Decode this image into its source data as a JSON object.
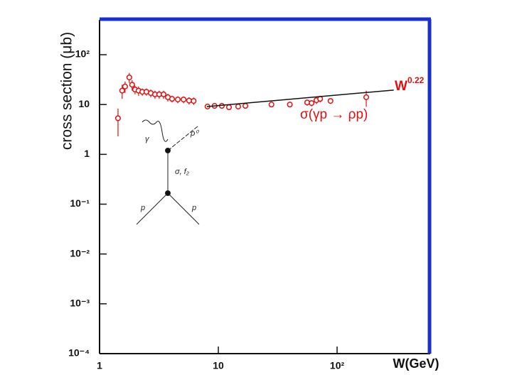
{
  "chart_data": {
    "type": "scatter",
    "xlabel": "W(GeV)",
    "ylabel": "cross section (μb)",
    "xscale": "log",
    "yscale": "log",
    "xlim": [
      1,
      600
    ],
    "ylim": [
      0.0001,
      500
    ],
    "xticks": [
      1,
      10,
      {
        "value": 100,
        "label": "10²"
      }
    ],
    "yticks": [
      {
        "value": 0.0001,
        "label": "10⁻⁴"
      },
      {
        "value": 0.001,
        "label": "10⁻³"
      },
      {
        "value": 0.01,
        "label": "10⁻²"
      },
      {
        "value": 0.1,
        "label": "10⁻¹"
      },
      1,
      10,
      {
        "value": 100,
        "label": "10²"
      }
    ],
    "color": "#e01010",
    "x": [
      1.43,
      1.55,
      1.64,
      1.78,
      1.88,
      1.99,
      2.13,
      2.29,
      2.48,
      2.7,
      2.93,
      3.18,
      3.46,
      3.76,
      4.08,
      4.56,
      5.1,
      5.67,
      6.2,
      8.1,
      9.3,
      10.7,
      12.3,
      14.7,
      16.9,
      28,
      40,
      56,
      61,
      67,
      72,
      88,
      176
    ],
    "values": [
      5.3,
      19,
      23,
      35,
      25,
      20,
      19,
      18,
      18,
      17,
      16,
      16,
      16,
      14,
      13,
      12.6,
      12.6,
      12,
      11.8,
      9.1,
      9.4,
      9.4,
      8.8,
      9.1,
      9.4,
      10,
      10,
      11,
      10.7,
      12.2,
      13,
      11.8,
      14
    ],
    "errors": [
      3,
      6,
      6,
      8,
      6,
      4,
      4,
      3,
      3,
      3,
      3,
      3,
      3,
      2.5,
      2,
      2,
      2,
      2,
      2,
      1,
      1,
      1,
      1,
      1,
      1,
      1.2,
      1.2,
      1.5,
      1.5,
      2,
      2,
      1.5,
      5
    ],
    "fit": {
      "x": [
        8,
        300
      ],
      "values": [
        9.1,
        19.5
      ],
      "color": "#111111"
    },
    "fit_label": {
      "text": "W",
      "sup": "0.22"
    },
    "process_label": "σ(γp → ρp)",
    "inset_labels": [
      "γ",
      "ρ⁰",
      "σ, f₂",
      "p",
      "p"
    ]
  }
}
